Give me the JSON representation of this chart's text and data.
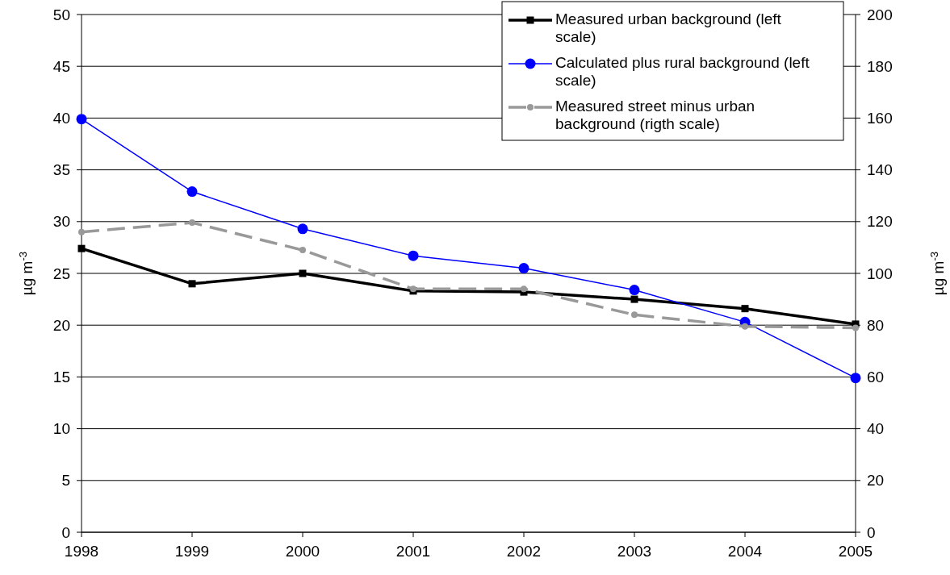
{
  "chart_data": {
    "type": "line",
    "categories": [
      "1998",
      "1999",
      "2000",
      "2001",
      "2002",
      "2003",
      "2004",
      "2005"
    ],
    "ylabel": "µg m$^{-3}$",
    "y2label": "µg m$^{-3}$",
    "ylim": [
      0,
      50
    ],
    "yticks": [
      0,
      5,
      10,
      15,
      20,
      25,
      30,
      35,
      40,
      45,
      50
    ],
    "y2lim": [
      0,
      200
    ],
    "y2ticks": [
      0,
      20,
      40,
      60,
      80,
      100,
      120,
      140,
      160,
      180,
      200
    ],
    "grid": "y",
    "legend": "top right",
    "series": [
      {
        "name": "Measured urban background (left scale)",
        "color": "#000000",
        "marker": "square",
        "line_style": "solid",
        "values": [
          27.4,
          24.0,
          25.0,
          23.3,
          23.2,
          22.5,
          21.6,
          20.1
        ]
      },
      {
        "name": "Calculated plus rural background (left scale)",
        "color": "#0000ff",
        "marker": "circle",
        "line_style": "solid",
        "values": [
          39.9,
          32.9,
          29.3,
          26.7,
          25.5,
          23.4,
          20.3,
          14.9
        ]
      },
      {
        "name": "Measured street minus urban background (rigth scale)",
        "color": "#999999",
        "marker": "circle",
        "line_style": "dashed",
        "axis": "y2",
        "values": [
          116,
          119.6,
          109,
          94,
          94,
          84,
          79.5,
          79
        ]
      }
    ]
  }
}
